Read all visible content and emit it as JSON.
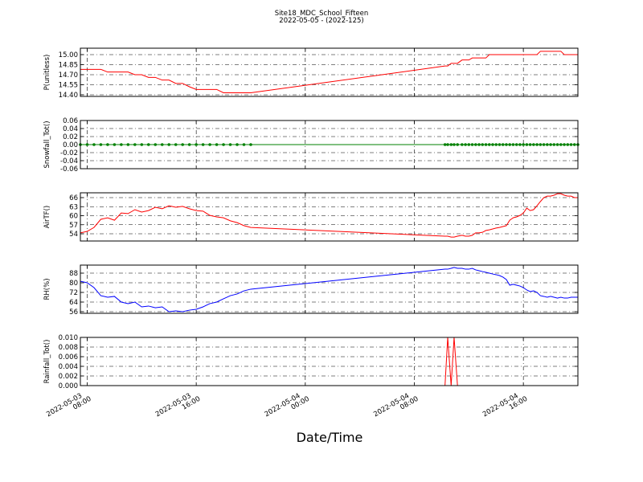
{
  "title": "Site18_MDC_School_Fifteen",
  "subtitle": "2022-05-05 - (2022-125)",
  "xlabel": "Date/Time",
  "xlim": [
    "2022-05-03 07:30",
    "2022-05-04 20:00"
  ],
  "xticks": [
    "2022-05-03 08:00",
    "2022-05-03 16:00",
    "2022-05-04 00:00",
    "2022-05-04 08:00",
    "2022-05-04 16:00"
  ],
  "grid": true,
  "x": [
    "2022-05-03 07:30",
    "2022-05-03 08:00",
    "2022-05-03 08:30",
    "2022-05-03 09:00",
    "2022-05-03 09:30",
    "2022-05-03 10:00",
    "2022-05-03 10:30",
    "2022-05-03 11:00",
    "2022-05-03 11:30",
    "2022-05-03 12:00",
    "2022-05-03 12:30",
    "2022-05-03 13:00",
    "2022-05-03 13:30",
    "2022-05-03 14:00",
    "2022-05-03 14:30",
    "2022-05-03 15:00",
    "2022-05-03 15:30",
    "2022-05-03 16:00",
    "2022-05-03 16:30",
    "2022-05-03 17:00",
    "2022-05-03 17:30",
    "2022-05-03 18:00",
    "2022-05-03 18:30",
    "2022-05-03 19:00",
    "2022-05-03 19:30",
    "2022-05-03 20:00",
    "2022-05-04 10:15",
    "2022-05-04 10:27",
    "2022-05-04 10:42",
    "2022-05-04 10:55",
    "2022-05-04 11:10",
    "2022-05-04 11:30",
    "2022-05-04 11:45",
    "2022-05-04 12:00",
    "2022-05-04 12:15",
    "2022-05-04 12:30",
    "2022-05-04 12:45",
    "2022-05-04 13:00",
    "2022-05-04 13:15",
    "2022-05-04 13:30",
    "2022-05-04 13:45",
    "2022-05-04 14:00",
    "2022-05-04 14:15",
    "2022-05-04 14:30",
    "2022-05-04 14:45",
    "2022-05-04 15:00",
    "2022-05-04 15:15",
    "2022-05-04 15:30",
    "2022-05-04 15:45",
    "2022-05-04 16:00",
    "2022-05-04 16:15",
    "2022-05-04 16:30",
    "2022-05-04 16:45",
    "2022-05-04 17:00",
    "2022-05-04 17:15",
    "2022-05-04 17:30",
    "2022-05-04 17:45",
    "2022-05-04 18:00",
    "2022-05-04 18:15",
    "2022-05-04 18:30",
    "2022-05-04 18:45",
    "2022-05-04 19:00",
    "2022-05-04 19:15",
    "2022-05-04 19:30",
    "2022-05-04 19:45",
    "2022-05-04 20:00"
  ],
  "chart_data": [
    {
      "type": "line",
      "ylabel": "P(unitless)",
      "color": "#ff0000",
      "markers": false,
      "ylim": [
        14.376,
        15.096
      ],
      "yticks": [
        {
          "value": 14.4,
          "label": "14.40"
        },
        14.55,
        {
          "value": 14.7,
          "label": "14.70"
        },
        14.85,
        {
          "value": 15,
          "label": "15.00"
        }
      ],
      "values": [
        14.78,
        14.78,
        14.78,
        14.78,
        14.74,
        14.74,
        14.74,
        14.74,
        14.7,
        14.7,
        14.66,
        14.66,
        14.62,
        14.62,
        14.57,
        14.57,
        14.52,
        14.48,
        14.48,
        14.48,
        14.48,
        14.43,
        14.43,
        14.43,
        14.43,
        14.43,
        14.83,
        14.83,
        14.87,
        14.87,
        14.87,
        14.92,
        14.92,
        14.92,
        14.95,
        14.95,
        14.95,
        14.95,
        14.95,
        15.0,
        15.0,
        15.0,
        15.0,
        15.0,
        15.0,
        15.0,
        15.0,
        15.0,
        15.0,
        15.0,
        15.0,
        15.0,
        15.0,
        15.0,
        15.05,
        15.05,
        15.05,
        15.05,
        15.05,
        15.05,
        15.05,
        15.0,
        15.0,
        15.0,
        15.0,
        15.0
      ]
    },
    {
      "type": "line",
      "ylabel": "Snowfall_Tot()",
      "color": "#008000",
      "markers": true,
      "ylim": [
        -0.06,
        0.06
      ],
      "yticks": [
        -0.06,
        -0.04,
        -0.02,
        {
          "value": 0,
          "label": "0.00"
        },
        0.02,
        0.04,
        0.06
      ],
      "values": [
        0,
        0,
        0,
        0,
        0,
        0,
        0,
        0,
        0,
        0,
        0,
        0,
        0,
        0,
        0,
        0,
        0,
        0,
        0,
        0,
        0,
        0,
        0,
        0,
        0,
        0,
        0,
        0,
        0,
        0,
        0,
        0,
        0,
        0,
        0,
        0,
        0,
        0,
        0,
        0,
        0,
        0,
        0,
        0,
        0,
        0,
        0,
        0,
        0,
        0,
        0,
        0,
        0,
        0,
        0,
        0,
        0,
        0,
        0,
        0,
        0,
        0,
        0,
        0,
        0,
        0
      ]
    },
    {
      "type": "line",
      "ylabel": "AirTF()",
      "color": "#ff0000",
      "markers": false,
      "ylim": [
        51.6,
        67.6
      ],
      "yticks": [
        54,
        57,
        60,
        63,
        66
      ],
      "values": [
        54.3,
        54.8,
        56.1,
        58.8,
        59.3,
        58.5,
        60.9,
        60.7,
        62.0,
        61.2,
        61.7,
        62.8,
        62.3,
        63.3,
        62.8,
        63.1,
        62.3,
        61.7,
        61.5,
        60.1,
        59.6,
        59.3,
        58.3,
        57.7,
        56.7,
        56.1,
        53.2,
        53.2,
        52.9,
        52.9,
        53.2,
        53.5,
        53.2,
        53.2,
        53.5,
        54.3,
        54.3,
        54.5,
        55.1,
        55.3,
        55.6,
        55.9,
        56.1,
        56.4,
        56.7,
        58.5,
        59.3,
        59.6,
        60.1,
        60.9,
        62.5,
        61.7,
        62.0,
        63.3,
        64.7,
        66.0,
        66.5,
        66.5,
        66.8,
        67.3,
        67.3,
        66.8,
        66.5,
        66.5,
        66.0,
        66.0
      ]
    },
    {
      "type": "line",
      "ylabel": "RH(%)",
      "color": "#0000ff",
      "markers": false,
      "ylim": [
        54.67,
        94.67
      ],
      "yticks": [
        56,
        64,
        72,
        80,
        88
      ],
      "values": [
        81.3,
        80,
        76,
        69.3,
        68,
        68.7,
        64,
        62.7,
        64,
        60,
        60.7,
        59.3,
        60,
        56,
        56.7,
        56,
        57.3,
        58,
        60,
        62.7,
        64,
        66.7,
        69.3,
        70.7,
        73.3,
        74.7,
        91.3,
        91.3,
        92,
        92.7,
        92,
        92,
        91.3,
        91.3,
        92,
        90.7,
        90,
        89.3,
        88.7,
        88,
        87.3,
        86.7,
        86,
        84.7,
        82.7,
        78,
        78.7,
        78,
        77.3,
        76,
        74,
        72.7,
        73.3,
        72,
        69.3,
        68.7,
        68,
        68.7,
        68,
        67.3,
        68,
        67.3,
        67.3,
        68,
        68,
        68
      ]
    },
    {
      "type": "line",
      "ylabel": "Rainfall_Tot()",
      "color": "#ff0000",
      "markers": false,
      "ylim": [
        0,
        0.01
      ],
      "yticks": [
        {
          "value": 0,
          "label": "0.000"
        },
        0.002,
        0.004,
        0.006,
        0.008,
        {
          "value": 0.01,
          "label": "0.010"
        }
      ],
      "values": [
        0,
        0,
        0,
        0,
        0,
        0,
        0,
        0,
        0,
        0,
        0,
        0,
        0,
        0,
        0,
        0,
        0,
        0,
        0,
        0,
        0,
        0,
        0,
        0,
        0,
        0,
        0,
        0.01,
        0,
        0.01,
        0,
        0,
        0,
        0,
        0,
        0,
        0,
        0,
        0,
        0,
        0,
        0,
        0,
        0,
        0,
        0,
        0,
        0,
        0,
        0,
        0,
        0,
        0,
        0,
        0,
        0,
        0,
        0,
        0,
        0,
        0,
        0,
        0,
        0,
        0,
        0
      ]
    }
  ]
}
